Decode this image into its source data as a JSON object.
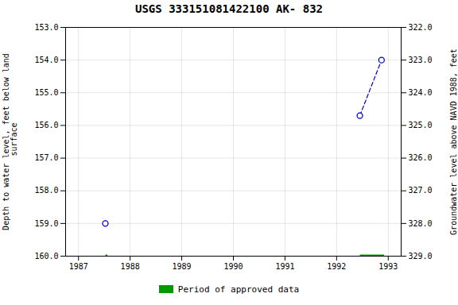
{
  "chart_data": {
    "type": "scatter",
    "title": "USGS 333151081422100 AK- 832",
    "ylabel": "Depth to water level, feet below land\n surface",
    "y2label": "Groundwater level above NAVD 1988, feet",
    "x": [
      1987.52,
      1992.45,
      1992.87
    ],
    "series": [
      {
        "type": "line",
        "line_style": "dashed",
        "color": "#0000cc",
        "values": [
          null,
          155.7,
          154.0
        ]
      },
      {
        "type": "scatter",
        "marker": "circle",
        "color": "#0000cc",
        "values": [
          159.0,
          155.7,
          154.0
        ]
      },
      {
        "type": "segments",
        "name": "Period of approved data",
        "color": "#009900",
        "segments": [
          {
            "x_start": 1987.52,
            "x_end": 1987.56,
            "y": 160.0
          },
          {
            "x_start": 1992.45,
            "x_end": 1992.92,
            "y": 160.0
          }
        ]
      }
    ],
    "xlim": [
      1986.75,
      1993.25
    ],
    "xticks": [
      1987,
      1988,
      1989,
      1990,
      1991,
      1992,
      1993
    ],
    "ylim": [
      160.0,
      153.0
    ],
    "yticks": [
      {
        "value": 153.0,
        "label": "153.0"
      },
      {
        "value": 154.0,
        "label": "154.0"
      },
      {
        "value": 155.0,
        "label": "155.0"
      },
      {
        "value": 156.0,
        "label": "156.0"
      },
      {
        "value": 157.0,
        "label": "157.0"
      },
      {
        "value": 158.0,
        "label": "158.0"
      },
      {
        "value": 159.0,
        "label": "159.0"
      },
      {
        "value": 160.0,
        "label": "160.0"
      }
    ],
    "y2lim": [
      329.0,
      322.0
    ],
    "y2ticks": [
      {
        "value": 329.0,
        "label": "329.0"
      },
      {
        "value": 328.0,
        "label": "328.0"
      },
      {
        "value": 327.0,
        "label": "327.0"
      },
      {
        "value": 326.0,
        "label": "326.0"
      },
      {
        "value": 325.0,
        "label": "325.0"
      },
      {
        "value": 324.0,
        "label": "324.0"
      },
      {
        "value": 323.0,
        "label": "323.0"
      },
      {
        "value": 322.0,
        "label": "322.0"
      }
    ],
    "grid": true,
    "legend": "bottom"
  }
}
